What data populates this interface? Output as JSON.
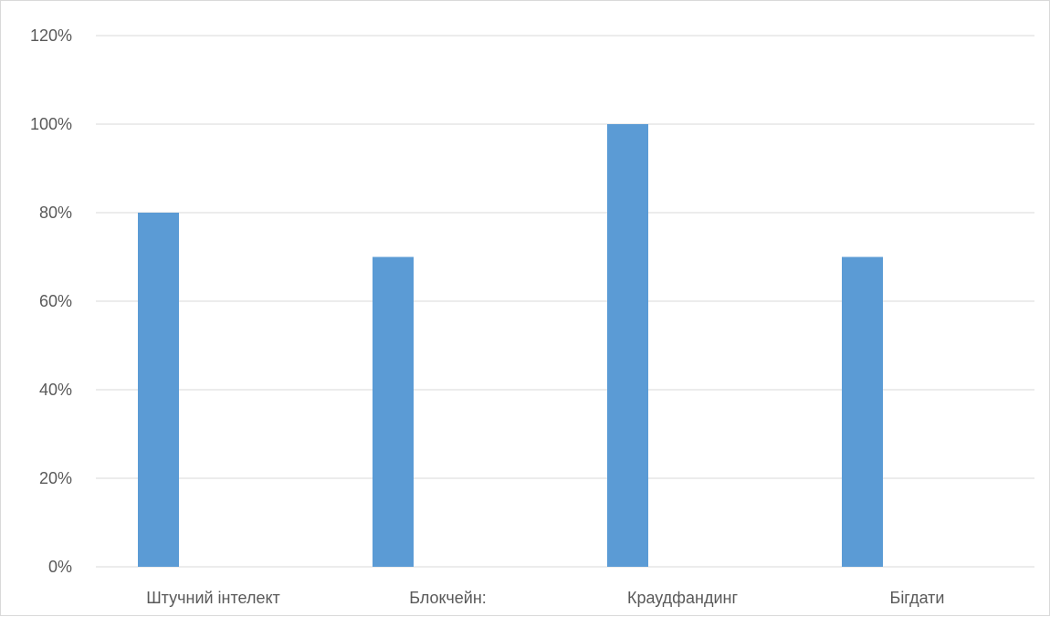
{
  "chart_data": {
    "type": "bar",
    "title": "",
    "xlabel": "",
    "ylabel": "",
    "categories": [
      "Штучний інтелект",
      "Блокчейн:",
      "Краудфандинг",
      "Бігдати"
    ],
    "series": [
      {
        "values": [
          0.8,
          0.7,
          1.0,
          0.7
        ]
      }
    ],
    "ylim": [
      0,
      1.2
    ],
    "yticks": [
      "0%",
      "20%",
      "40%",
      "60%",
      "80%",
      "100%",
      "120%"
    ],
    "grid": true,
    "legend": "none",
    "bar_color": "#5b9bd5",
    "grid_color": "#d9d9d9"
  }
}
